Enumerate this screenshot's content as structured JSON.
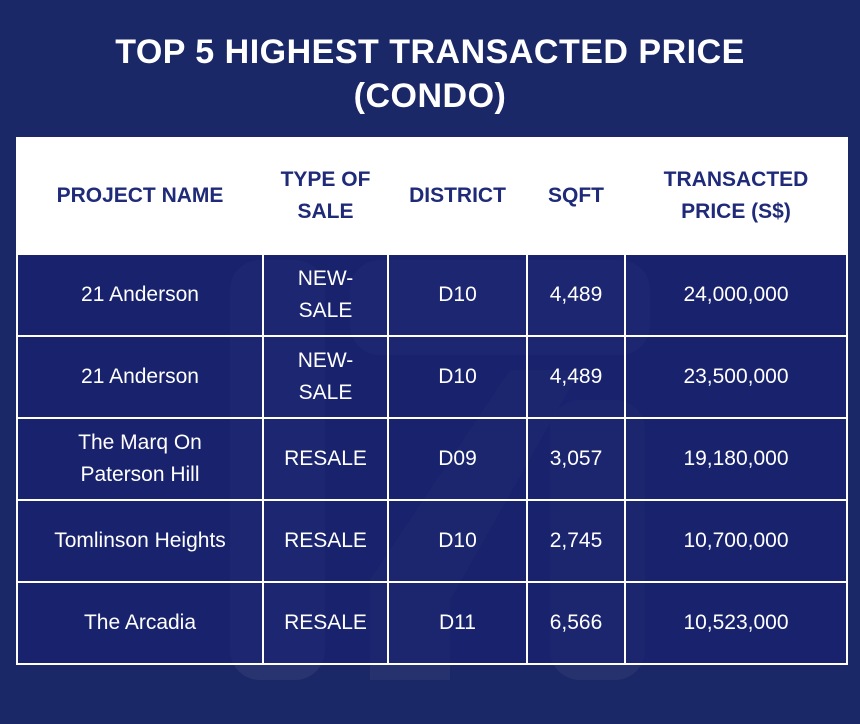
{
  "title": {
    "line1": "TOP 5 HIGHEST TRANSACTED PRICE",
    "line2": "(CONDO)"
  },
  "table": {
    "headers": {
      "project": [
        "PROJECT NAME"
      ],
      "type": [
        "TYPE OF",
        "SALE"
      ],
      "district": [
        "DISTRICT"
      ],
      "sqft": [
        "SQFT"
      ],
      "price": [
        "TRANSACTED",
        "PRICE (S$)"
      ]
    },
    "rows": [
      {
        "project": [
          "21 Anderson"
        ],
        "type": [
          "NEW-",
          "SALE"
        ],
        "district": "D10",
        "sqft": "4,489",
        "price": "24,000,000"
      },
      {
        "project": [
          "21 Anderson"
        ],
        "type": [
          "NEW-",
          "SALE"
        ],
        "district": "D10",
        "sqft": "4,489",
        "price": "23,500,000"
      },
      {
        "project": [
          "The Marq On",
          "Paterson Hill"
        ],
        "type": [
          "RESALE"
        ],
        "district": "D09",
        "sqft": "3,057",
        "price": "19,180,000"
      },
      {
        "project": [
          "Tomlinson Heights"
        ],
        "type": [
          "RESALE"
        ],
        "district": "D10",
        "sqft": "2,745",
        "price": "10,700,000"
      },
      {
        "project": [
          "The Arcadia"
        ],
        "type": [
          "RESALE"
        ],
        "district": "D11",
        "sqft": "6,566",
        "price": "10,523,000"
      }
    ]
  },
  "colors": {
    "background": "#1b2867",
    "header_background": "#ffffff",
    "header_text": "#1f2a78",
    "cell_text": "#ffffff",
    "grid_lines": "#ffffff"
  }
}
